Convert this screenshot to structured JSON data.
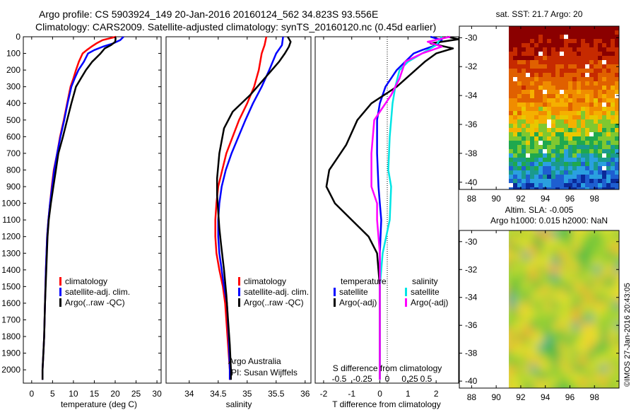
{
  "header": {
    "line1": "Argo profile: CS 5903924_149 20-Jan-2016 20160124_562 34.823S 93.556E",
    "line2": "Climatology: CARS2009. Satellite-adjusted climatology: synTS_20160120.nc (0.45d earlier)"
  },
  "colors": {
    "climatology": "#ff0000",
    "satellite": "#0000ff",
    "argo": "#000000",
    "sat_salinity": "#00e5e5",
    "argo_salinity": "#ff00ff"
  },
  "depth_ticks": [
    "0",
    "100",
    "200",
    "300",
    "400",
    "500",
    "600",
    "700",
    "800",
    "900",
    "1000",
    "1100",
    "1200",
    "1300",
    "1400",
    "1500",
    "1600",
    "1700",
    "1800",
    "1900",
    "2000"
  ],
  "credit": {
    "line1": "Argo Australia",
    "line2": "PI: Susan Wijffels"
  },
  "timestamp": "©IMOS 27-Jan-2016 20:43:05",
  "chart_data": [
    {
      "type": "line",
      "name": "temperature panel",
      "xlabel": "temperature (deg C)",
      "ylabel": "",
      "xlim": [
        -2,
        31
      ],
      "ylim": [
        2080,
        0
      ],
      "xticks": [
        "0",
        "5",
        "10",
        "15",
        "20",
        "25",
        "30"
      ],
      "legend": [
        "climatology",
        "satellite-adj. clim.",
        "Argo(..raw -QC)"
      ],
      "series": [
        {
          "name": "climatology",
          "color": "#ff0000",
          "x": [
            20.2,
            17,
            15.5,
            14.3,
            13.2,
            12.2,
            11.3,
            10.6,
            10,
            9.3,
            8.5,
            7.7,
            6.8,
            6.1,
            5.3,
            4.8,
            4.4,
            4.0,
            3.7,
            3.4,
            3.2,
            3.0,
            2.8,
            2.6,
            2.6
          ],
          "y": [
            0,
            20,
            40,
            60,
            80,
            100,
            150,
            200,
            250,
            300,
            400,
            500,
            600,
            700,
            800,
            900,
            1000,
            1100,
            1200,
            1400,
            1600,
            1800,
            1900,
            2000,
            2060
          ]
        },
        {
          "name": "satellite-adj. clim.",
          "color": "#0000ff",
          "x": [
            22.0,
            21.2,
            19.5,
            17,
            15,
            13.5,
            12.5,
            11.2,
            10.3,
            9.5,
            8.6,
            7.8,
            6.9,
            6.1,
            5.4,
            4.9,
            4.4,
            4.0,
            3.7,
            3.4,
            3.2,
            3.0,
            2.8,
            2.6,
            2.6
          ],
          "y": [
            0,
            20,
            40,
            60,
            80,
            100,
            150,
            200,
            250,
            300,
            400,
            500,
            600,
            700,
            800,
            900,
            1000,
            1100,
            1200,
            1400,
            1600,
            1800,
            1900,
            2000,
            2060
          ]
        },
        {
          "name": "Argo(..raw -QC)",
          "color": "#000000",
          "x": [
            20.0,
            20.1,
            20.0,
            19.0,
            17.5,
            16.5,
            14.5,
            13,
            11.8,
            10.6,
            9.5,
            8.5,
            7.5,
            6.4,
            5.8,
            5.2,
            4.6,
            4.1,
            3.8,
            3.5,
            3.2,
            3.0,
            2.8,
            2.6,
            2.6
          ],
          "y": [
            0,
            10,
            30,
            50,
            70,
            100,
            150,
            200,
            250,
            300,
            400,
            500,
            600,
            700,
            800,
            900,
            1000,
            1100,
            1200,
            1400,
            1600,
            1800,
            1900,
            2000,
            2060
          ]
        }
      ]
    },
    {
      "type": "line",
      "name": "salinity panel",
      "xlabel": "salinity",
      "ylabel": "",
      "xlim": [
        33.6,
        36.1
      ],
      "ylim": [
        2080,
        0
      ],
      "xticks": [
        "34",
        "34.5",
        "35",
        "35.5",
        "36"
      ],
      "legend": [
        "climatology",
        "satellite-adj. clim.",
        "Argo(..raw -QC)"
      ],
      "series": [
        {
          "name": "climatology",
          "color": "#ff0000",
          "x": [
            35.33,
            35.3,
            35.25,
            35.2,
            35.12,
            35.0,
            34.86,
            34.75,
            34.64,
            34.57,
            34.5,
            34.47,
            34.45,
            34.45,
            34.47,
            34.52,
            34.58,
            34.62,
            34.66,
            34.7,
            34.7
          ],
          "y": [
            0,
            50,
            100,
            200,
            300,
            400,
            500,
            600,
            700,
            800,
            900,
            1000,
            1100,
            1200,
            1300,
            1400,
            1500,
            1600,
            1800,
            2000,
            2060
          ]
        },
        {
          "name": "satellite-adj. clim.",
          "color": "#0000ff",
          "x": [
            35.62,
            35.6,
            35.5,
            35.38,
            35.25,
            35.1,
            34.97,
            34.85,
            34.73,
            34.63,
            34.56,
            34.52,
            34.5,
            34.5,
            34.52,
            34.56,
            34.6,
            34.65,
            34.68,
            34.7,
            34.7
          ],
          "y": [
            0,
            50,
            100,
            200,
            300,
            400,
            500,
            600,
            700,
            800,
            900,
            1000,
            1100,
            1200,
            1300,
            1400,
            1500,
            1600,
            1800,
            2000,
            2060
          ]
        },
        {
          "name": "Argo(..raw -QC)",
          "color": "#000000",
          "x": [
            35.7,
            35.75,
            35.72,
            35.65,
            35.55,
            35.3,
            35.05,
            34.75,
            34.6,
            34.52,
            34.48,
            34.48,
            34.5,
            34.52,
            34.55,
            34.6,
            34.64,
            34.67,
            34.7,
            34.72,
            34.72,
            34.72
          ],
          "y": [
            0,
            30,
            60,
            100,
            150,
            250,
            350,
            450,
            550,
            700,
            850,
            950,
            1050,
            1150,
            1250,
            1400,
            1550,
            1700,
            1850,
            2000,
            2030,
            2060
          ]
        }
      ]
    },
    {
      "type": "line",
      "name": "difference panel",
      "xlabel": "T difference from climatology",
      "secondary_xlabel": "S difference from climatology",
      "xlim": [
        -2.3,
        2.8
      ],
      "ylim": [
        2080,
        0
      ],
      "xticks": [
        "-2",
        "-1",
        "0",
        "1",
        "2"
      ],
      "secondary_xticks": [
        "-0.5",
        "-0.25",
        "0",
        "0.25",
        "0.5"
      ],
      "legend_titles": [
        "temperature",
        "salinity"
      ],
      "legend": [
        "satellite",
        "Argo(-adj)",
        "satellite",
        "Argo(-adj)"
      ],
      "series": [
        {
          "name": "temperature satellite",
          "color": "#0000ff",
          "x": [
            1.8,
            2.2,
            2.0,
            1.5,
            1.2,
            0.6,
            0.2,
            0.0,
            -0.1,
            -0.1,
            -0.05,
            0.0,
            0.05,
            0.0,
            0.0,
            0.0,
            0.0,
            0.0
          ],
          "y": [
            0,
            20,
            50,
            80,
            100,
            200,
            300,
            400,
            500,
            700,
            900,
            1000,
            1100,
            1300,
            1500,
            1700,
            1900,
            2060
          ]
        },
        {
          "name": "temperature Argo(-adj)",
          "color": "#000000",
          "x": [
            2.4,
            2.8,
            1.8,
            2.6,
            2.0,
            1.6,
            0.6,
            -0.3,
            -0.8,
            -1.2,
            -1.6,
            -1.8,
            -1.9,
            -1.6,
            -1.0,
            -0.4,
            -0.1,
            0.0,
            0.0,
            0.0
          ],
          "y": [
            0,
            15,
            40,
            70,
            100,
            150,
            300,
            400,
            500,
            650,
            750,
            800,
            900,
            1000,
            1100,
            1200,
            1300,
            1500,
            1800,
            2060
          ]
        },
        {
          "name": "salinity satellite",
          "color": "#00e5e5",
          "x": [
            2.2,
            2.0,
            1.5,
            1.0,
            0.7,
            0.55,
            0.45,
            0.4,
            0.35,
            0.3,
            0.4,
            0.35,
            0.1,
            0.0,
            0.0,
            0.0
          ],
          "y": [
            0,
            50,
            100,
            150,
            200,
            300,
            400,
            500,
            600,
            800,
            900,
            1100,
            1300,
            1500,
            1800,
            2060
          ]
        },
        {
          "name": "salinity Argo(-adj)",
          "color": "#ff00ff",
          "x": [
            2.5,
            1.7,
            2.2,
            1.5,
            0.9,
            0.7,
            0.4,
            -0.2,
            -0.3,
            -0.3,
            -0.1,
            -0.1,
            0.0,
            0.0,
            0.0
          ],
          "y": [
            0,
            30,
            60,
            100,
            150,
            250,
            350,
            500,
            700,
            900,
            1000,
            1100,
            1300,
            1600,
            2060
          ]
        }
      ]
    },
    {
      "type": "heatmap",
      "name": "SST map",
      "title": "sat. SST: 21.7  Argo: 20",
      "xlim": [
        87,
        100
      ],
      "ylim": [
        -40.5,
        -29.2
      ],
      "xticks": [
        "88",
        "90",
        "92",
        "94",
        "96",
        "98"
      ],
      "yticks": [
        "-30",
        "-32",
        "-34",
        "-36",
        "-38",
        "-40"
      ]
    },
    {
      "type": "heatmap",
      "name": "SLA map",
      "title": "Altim. SLA: -0.005",
      "subtitle": "Argo h1000: 0.015 h2000: NaN",
      "xlim": [
        87,
        100
      ],
      "ylim": [
        -40.5,
        -29.2
      ],
      "xticks": [
        "88",
        "90",
        "92",
        "94",
        "96",
        "98"
      ],
      "yticks": [
        "-30",
        "-32",
        "-34",
        "-36",
        "-38",
        "-40"
      ]
    }
  ]
}
